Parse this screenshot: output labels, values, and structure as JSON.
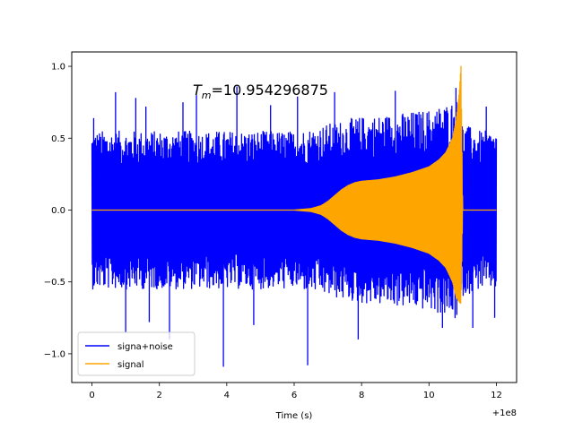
{
  "chart_data": {
    "type": "line",
    "annotation": {
      "symbol": "T",
      "subscript": "m",
      "text": "=10.954296875",
      "x": 3.0,
      "y": 0.82
    },
    "xlabel": "Time (s)",
    "ylabel": "",
    "x_offset_label": "+1e8",
    "xlim": [
      -0.6,
      12.6
    ],
    "ylim": [
      -1.2,
      1.1
    ],
    "xticks": [
      0,
      2,
      4,
      6,
      8,
      10,
      12
    ],
    "xtick_labels": [
      "0",
      "2",
      "4",
      "6",
      "8",
      "10",
      "12"
    ],
    "yticks": [
      -1.0,
      -0.5,
      0.0,
      0.5,
      1.0
    ],
    "ytick_labels": [
      "−1.0",
      "−0.5",
      "0.0",
      "0.5",
      "1.0"
    ],
    "grid": false,
    "legend_position": "lower-left",
    "series": [
      {
        "name": "signa+noise",
        "color": "#0000ff",
        "envelope": {
          "x": [
            0,
            1,
            2,
            3,
            4,
            5,
            6,
            6.5,
            7,
            7.5,
            8,
            9,
            10,
            10.5,
            10.9,
            11.0,
            11.5,
            12
          ],
          "upper": [
            0.55,
            0.55,
            0.55,
            0.55,
            0.55,
            0.55,
            0.55,
            0.57,
            0.6,
            0.63,
            0.65,
            0.67,
            0.7,
            0.74,
            0.78,
            0.6,
            0.55,
            0.55
          ],
          "lower": [
            -0.55,
            -0.55,
            -0.55,
            -0.55,
            -0.55,
            -0.55,
            -0.55,
            -0.57,
            -0.6,
            -0.63,
            -0.65,
            -0.67,
            -0.7,
            -0.74,
            -0.78,
            -0.6,
            -0.55,
            -0.55
          ]
        },
        "peaks": [
          {
            "x": 0.05,
            "y": 0.64
          },
          {
            "x": 0.1,
            "y": -0.4
          },
          {
            "x": 0.7,
            "y": 0.82
          },
          {
            "x": 1.0,
            "y": -0.85
          },
          {
            "x": 1.3,
            "y": 0.78
          },
          {
            "x": 1.7,
            "y": -0.78
          },
          {
            "x": 1.6,
            "y": 0.72
          },
          {
            "x": 2.3,
            "y": -0.9
          },
          {
            "x": 2.7,
            "y": 0.75
          },
          {
            "x": 3.1,
            "y": 0.8
          },
          {
            "x": 3.9,
            "y": -1.09
          },
          {
            "x": 4.3,
            "y": 0.86
          },
          {
            "x": 4.8,
            "y": -0.8
          },
          {
            "x": 5.3,
            "y": 0.73
          },
          {
            "x": 6.1,
            "y": 0.79
          },
          {
            "x": 6.4,
            "y": -1.08
          },
          {
            "x": 7.2,
            "y": 0.82
          },
          {
            "x": 7.9,
            "y": -0.9
          },
          {
            "x": 9.0,
            "y": 0.83
          },
          {
            "x": 10.4,
            "y": -0.82
          },
          {
            "x": 10.8,
            "y": 0.85
          },
          {
            "x": 11.3,
            "y": -0.82
          },
          {
            "x": 11.7,
            "y": 0.72
          },
          {
            "x": 11.95,
            "y": -0.75
          }
        ],
        "x_range": [
          0,
          12
        ]
      },
      {
        "name": "signal",
        "color": "#ffa500",
        "envelope": {
          "x": [
            0,
            6.0,
            6.5,
            6.8,
            7.0,
            7.2,
            7.4,
            7.6,
            7.8,
            8.0,
            8.5,
            9.0,
            9.5,
            10.0,
            10.3,
            10.5,
            10.7,
            10.8,
            10.9,
            10.95,
            11.0,
            12
          ],
          "upper": [
            0,
            0.0,
            0.01,
            0.03,
            0.06,
            0.1,
            0.14,
            0.17,
            0.19,
            0.2,
            0.21,
            0.23,
            0.26,
            0.3,
            0.35,
            0.4,
            0.5,
            0.62,
            0.82,
            1.0,
            0.0,
            0.0
          ],
          "lower": [
            0,
            0.0,
            -0.01,
            -0.03,
            -0.06,
            -0.1,
            -0.14,
            -0.17,
            -0.19,
            -0.2,
            -0.21,
            -0.23,
            -0.26,
            -0.3,
            -0.35,
            -0.4,
            -0.5,
            -0.6,
            -0.64,
            -0.65,
            0.0,
            0.0
          ]
        },
        "x_range": [
          0,
          12
        ]
      }
    ]
  }
}
